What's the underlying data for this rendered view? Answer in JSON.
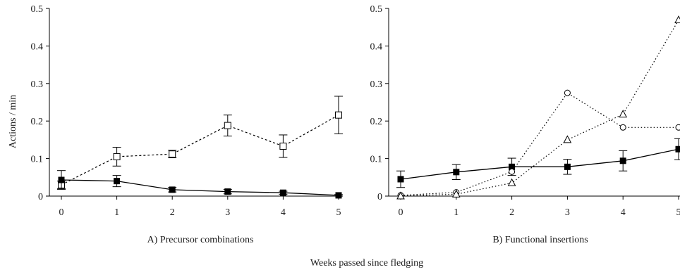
{
  "xlabel": "Weeks passed since fledging",
  "chart_data": [
    {
      "type": "line",
      "title": "A) Precursor combinations",
      "ylabel": "Actions / min",
      "xlim": [
        0,
        5
      ],
      "ylim": [
        0,
        0.5
      ],
      "x_ticks": [
        0,
        1,
        2,
        3,
        4,
        5
      ],
      "y_ticks": [
        0,
        0.1,
        0.2,
        0.3,
        0.4,
        0.5
      ],
      "series": [
        {
          "marker": "open-square",
          "line": "dashed",
          "color": "#000000",
          "x": [
            0,
            1,
            2,
            3,
            4,
            5
          ],
          "values": [
            0.03,
            0.105,
            0.112,
            0.188,
            0.133,
            0.216
          ],
          "error": [
            0.01,
            0.025,
            0.01,
            0.028,
            0.03,
            0.05
          ]
        },
        {
          "marker": "filled-square",
          "line": "solid",
          "color": "#000000",
          "x": [
            0,
            1,
            2,
            3,
            4,
            5
          ],
          "values": [
            0.043,
            0.04,
            0.017,
            0.012,
            0.009,
            0.002
          ],
          "error": [
            0.025,
            0.015,
            0.006,
            0.006,
            0.004,
            0.002
          ]
        }
      ]
    },
    {
      "type": "line",
      "title": "B) Functional insertions",
      "ylabel": "",
      "xlim": [
        0,
        5
      ],
      "ylim": [
        0,
        0.5
      ],
      "x_ticks": [
        0,
        1,
        2,
        3,
        4,
        5
      ],
      "y_ticks": [
        0,
        0.1,
        0.2,
        0.3,
        0.4,
        0.5
      ],
      "series": [
        {
          "marker": "filled-square",
          "line": "solid",
          "color": "#000000",
          "x": [
            0,
            1,
            2,
            3,
            4,
            5
          ],
          "values": [
            0.045,
            0.064,
            0.078,
            0.078,
            0.094,
            0.125
          ],
          "error": [
            0.022,
            0.02,
            0.023,
            0.02,
            0.027,
            0.028
          ]
        },
        {
          "marker": "open-circle",
          "line": "dotted",
          "color": "#000000",
          "x": [
            0,
            1,
            2,
            3,
            4,
            5
          ],
          "values": [
            0.002,
            0.01,
            0.065,
            0.275,
            0.183,
            0.183
          ],
          "error": []
        },
        {
          "marker": "open-triangle",
          "line": "dotted",
          "color": "#000000",
          "x": [
            0,
            1,
            2,
            3,
            4,
            5
          ],
          "values": [
            0.0,
            0.005,
            0.035,
            0.15,
            0.218,
            0.469
          ],
          "error": []
        }
      ]
    }
  ]
}
